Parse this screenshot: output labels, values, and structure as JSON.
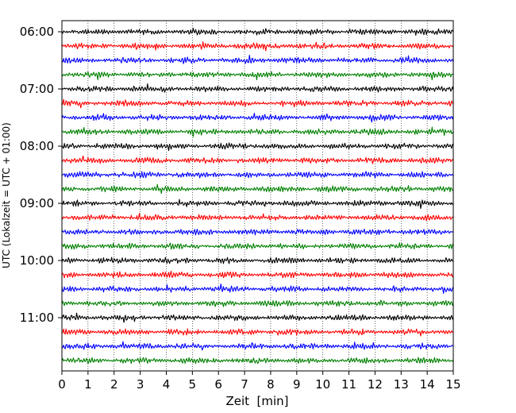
{
  "chart_data": {
    "type": "line",
    "title": "",
    "xlabel": "Zeit  [min]",
    "ylabel": "UTC (Lokalzeit = UTC + 01:00)",
    "xlim": [
      0,
      15
    ],
    "x_ticks": [
      "0",
      "1",
      "2",
      "3",
      "4",
      "5",
      "6",
      "7",
      "8",
      "9",
      "10",
      "11",
      "12",
      "13",
      "14",
      "15"
    ],
    "y_ticks": [
      "06:00",
      "07:00",
      "08:00",
      "09:00",
      "10:00",
      "11:00"
    ],
    "grid": "vertical dotted lines at each minute",
    "trace_colors": [
      "#000000",
      "#ff0000",
      "#0000ff",
      "#008000"
    ],
    "row_interval_minutes": 15,
    "rows": [
      "06:00",
      "06:15",
      "06:30",
      "06:45",
      "07:00",
      "07:15",
      "07:30",
      "07:45",
      "08:00",
      "08:15",
      "08:30",
      "08:45",
      "09:00",
      "09:15",
      "09:30",
      "09:45",
      "10:00",
      "10:15",
      "10:30",
      "10:45",
      "11:00",
      "11:15",
      "11:30",
      "11:45"
    ]
  }
}
